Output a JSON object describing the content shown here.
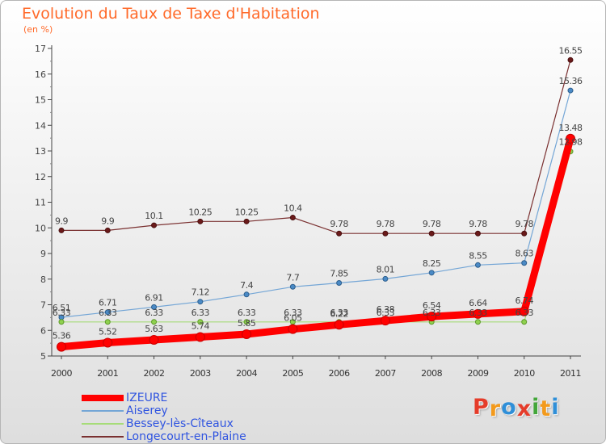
{
  "chart_title": "Evolution du Taux de Taxe d'Habitation",
  "chart_unit": "(en %)",
  "brand": {
    "letters": [
      "P",
      "r",
      "o",
      "x",
      "i",
      "t",
      "i"
    ],
    "colors": [
      "#e53c2a",
      "#f39a1c",
      "#2f8fd8",
      "#e53c2a",
      "#43a63a",
      "#f39a1c",
      "#2f8fd8"
    ]
  },
  "chart_data": {
    "type": "line",
    "x": [
      "2000",
      "2001",
      "2002",
      "2003",
      "2004",
      "2005",
      "2006",
      "2007",
      "2008",
      "2009",
      "2010",
      "2011"
    ],
    "yticks": [
      "5",
      "6",
      "7",
      "8",
      "9",
      "10",
      "11",
      "12",
      "13",
      "14",
      "15",
      "16",
      "17"
    ],
    "ylim": [
      5,
      17
    ],
    "grid": false,
    "legend_position": "bottom-left",
    "series": [
      {
        "name": "IZEURE",
        "color": "#ff0000",
        "values": [
          5.36,
          5.52,
          5.63,
          5.74,
          5.85,
          6.05,
          6.22,
          6.38,
          6.54,
          6.64,
          6.74,
          13.48
        ],
        "labels": [
          "5.36",
          "5.52",
          "5.63",
          "5.74",
          "5.85",
          "6.05",
          "6.22",
          "6.38",
          "6.54",
          "6.64",
          "6.74",
          "13.48"
        ]
      },
      {
        "name": "Aiserey",
        "color": "#4a8ac6",
        "values": [
          6.51,
          6.71,
          6.91,
          7.12,
          7.4,
          7.7,
          7.85,
          8.01,
          8.25,
          8.55,
          8.63,
          15.36
        ],
        "labels": [
          "6.51",
          "6.71",
          "6.91",
          "7.12",
          "7.4",
          "7.7",
          "7.85",
          "8.01",
          "8.25",
          "8.55",
          "8.63",
          "15.36"
        ]
      },
      {
        "name": "Bessey-lès-Cîteaux",
        "color": "#8fd14f",
        "values": [
          6.33,
          6.33,
          6.33,
          6.33,
          6.33,
          6.33,
          6.33,
          6.33,
          6.33,
          6.33,
          6.33,
          12.98
        ],
        "labels": [
          "6.33",
          "6.33",
          "6.33",
          "6.33",
          "6.33",
          "6.33",
          "6.33",
          "6.33",
          "6.33",
          "6.33",
          "6.33",
          "12.98"
        ]
      },
      {
        "name": "Longecourt-en-Plaine",
        "color": "#6b1a1a",
        "values": [
          9.9,
          9.9,
          10.1,
          10.25,
          10.25,
          10.4,
          9.78,
          9.78,
          9.78,
          9.78,
          9.78,
          16.55
        ],
        "labels": [
          "9.9",
          "9.9",
          "10.1",
          "10.25",
          "10.25",
          "10.4",
          "9.78",
          "9.78",
          "9.78",
          "9.78",
          "9.78",
          "16.55"
        ]
      }
    ]
  }
}
